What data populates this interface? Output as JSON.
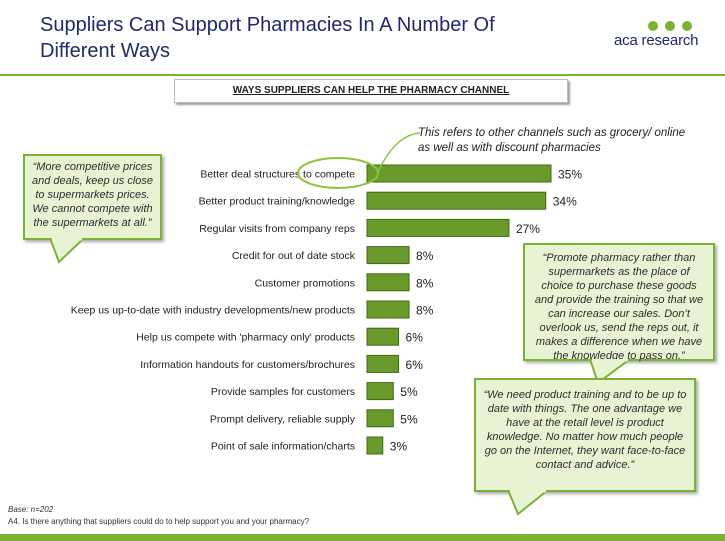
{
  "slide": {
    "title": "Suppliers Can Support Pharmacies In A Number Of Different Ways",
    "logo_text": "aca research",
    "subtitle": "WAYS SUPPLIERS CAN HELP THE PHARMACY CHANNEL",
    "annotation": "This refers to other channels such as grocery/ online as well as with discount pharmacies",
    "base": "Base: n=202",
    "question": "A4. Is there anything that suppliers could do to help support you and your pharmacy?"
  },
  "quotes": [
    "“More competitive prices and deals, keep us close to supermarkets prices. We cannot compete with the supermarkets at all.”",
    "“Promote pharmacy rather than supermarkets as the place of choice to purchase these goods and provide the training so that we can increase our sales.  Don’t overlook us, send the reps out, it makes a difference when we have the knowledge to pass on.”",
    "“We need product training and to be up to date with things. The one advantage we have at the retail level is product knowledge. No matter how much people go on the Internet, they  want face-to-face contact and advice.”"
  ],
  "colors": {
    "bar": "#6b9a2c",
    "bar_edge": "#3f6a12",
    "accent": "#7ab334",
    "title": "#1f2a6b"
  },
  "chart_data": {
    "type": "bar",
    "orientation": "horizontal",
    "categories": [
      "Better deal structures to compete",
      "Better product training/knowledge",
      "Regular visits from company reps",
      "Credit for out of date stock",
      "Customer promotions",
      "Keep us up-to-date with industry developments/new products",
      "Help us compete with 'pharmacy only' products",
      "Information handouts for customers/brochures",
      "Provide samples for customers",
      "Prompt delivery, reliable supply",
      "Point of sale information/charts"
    ],
    "values": [
      35,
      34,
      27,
      8,
      8,
      8,
      6,
      6,
      5,
      5,
      3
    ],
    "value_labels": [
      "35%",
      "34%",
      "27%",
      "8%",
      "8%",
      "8%",
      "6%",
      "6%",
      "5%",
      "5%",
      "3%"
    ],
    "xlim": [
      0,
      35
    ],
    "grid": false
  }
}
